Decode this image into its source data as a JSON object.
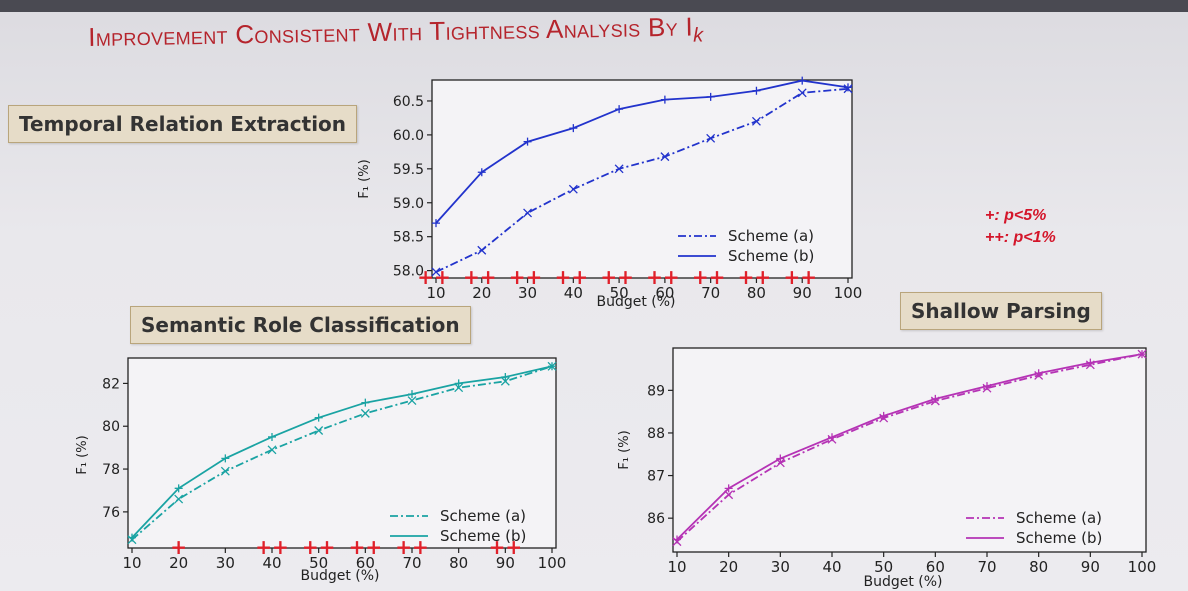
{
  "slide": {
    "title": "Improvement Consistent With Tightness Analysis By I",
    "title_sub": "k",
    "sig_note_1": "+: p<5%",
    "sig_note_2": "++: p<1%"
  },
  "colors": {
    "title": "#b5242c",
    "blue": "#2233cc",
    "teal": "#1aa3a3",
    "magenta": "#b533b5",
    "sig": "#e0202a"
  },
  "chart_data": [
    {
      "type": "line",
      "panel_label": "Temporal Relation Extraction",
      "xlabel": "Budget (%)",
      "ylabel": "F₁ (%)",
      "x": [
        10,
        20,
        30,
        40,
        50,
        60,
        70,
        80,
        90,
        100
      ],
      "xlim": [
        10,
        100
      ],
      "ylim": [
        57.95,
        60.75
      ],
      "yticks": [
        58.0,
        58.5,
        59.0,
        59.5,
        60.0,
        60.5
      ],
      "ytick_labels": [
        "58.0",
        "58.5",
        "59.0",
        "59.5",
        "60.0",
        "60.5"
      ],
      "xtick_labels": [
        "10",
        "20",
        "30",
        "40",
        "50",
        "60",
        "70",
        "80",
        "90",
        "100"
      ],
      "legend_position": "lower-right",
      "series": [
        {
          "name": "Scheme (a)",
          "style": "dashdot",
          "marker": "x",
          "color": "#2233cc",
          "values": [
            57.98,
            58.3,
            58.85,
            59.2,
            59.5,
            59.68,
            59.95,
            60.2,
            60.62,
            60.68
          ]
        },
        {
          "name": "Scheme (b)",
          "style": "solid",
          "marker": "+",
          "color": "#2233cc",
          "values": [
            58.7,
            59.45,
            59.9,
            60.1,
            60.38,
            60.52,
            60.56,
            60.65,
            60.8,
            60.7
          ]
        }
      ],
      "significance": [
        "++",
        "++",
        "++",
        "++",
        "++",
        "++",
        "++",
        "++",
        "++",
        ""
      ]
    },
    {
      "type": "line",
      "panel_label": "Semantic Role Classification",
      "xlabel": "Budget (%)",
      "ylabel": "F₁ (%)",
      "x": [
        10,
        20,
        30,
        40,
        50,
        60,
        70,
        80,
        90,
        100
      ],
      "xlim": [
        10,
        100
      ],
      "ylim": [
        74.5,
        83.0
      ],
      "yticks": [
        76,
        78,
        80,
        82
      ],
      "ytick_labels": [
        "76",
        "78",
        "80",
        "82"
      ],
      "xtick_labels": [
        "10",
        "20",
        "30",
        "40",
        "50",
        "60",
        "70",
        "80",
        "90",
        "100"
      ],
      "legend_position": "lower-right",
      "series": [
        {
          "name": "Scheme (a)",
          "style": "dashdot",
          "marker": "x",
          "color": "#1aa3a3",
          "values": [
            74.7,
            76.6,
            77.9,
            78.9,
            79.8,
            80.6,
            81.2,
            81.8,
            82.1,
            82.8
          ]
        },
        {
          "name": "Scheme (b)",
          "style": "solid",
          "marker": "+",
          "color": "#1aa3a3",
          "values": [
            74.8,
            77.1,
            78.5,
            79.5,
            80.4,
            81.1,
            81.5,
            82.0,
            82.3,
            82.8
          ]
        }
      ],
      "significance": [
        "",
        "+",
        "",
        "++",
        "++",
        "++",
        "++",
        "",
        "++",
        ""
      ]
    },
    {
      "type": "line",
      "panel_label": "Shallow Parsing",
      "xlabel": "Budget (%)",
      "ylabel": "F₁ (%)",
      "x": [
        10,
        20,
        30,
        40,
        50,
        60,
        70,
        80,
        90,
        100
      ],
      "xlim": [
        10,
        100
      ],
      "ylim": [
        85.3,
        89.9
      ],
      "yticks": [
        86,
        87,
        88,
        89
      ],
      "ytick_labels": [
        "86",
        "87",
        "88",
        "89"
      ],
      "xtick_labels": [
        "10",
        "20",
        "30",
        "40",
        "50",
        "60",
        "70",
        "80",
        "90",
        "100"
      ],
      "legend_position": "lower-right",
      "series": [
        {
          "name": "Scheme (a)",
          "style": "dashdot",
          "marker": "x",
          "color": "#b533b5",
          "values": [
            85.45,
            86.55,
            87.3,
            87.85,
            88.35,
            88.75,
            89.05,
            89.35,
            89.6,
            89.85
          ]
        },
        {
          "name": "Scheme (b)",
          "style": "solid",
          "marker": "+",
          "color": "#b533b5",
          "values": [
            85.5,
            86.7,
            87.4,
            87.9,
            88.4,
            88.8,
            89.1,
            89.4,
            89.65,
            89.85
          ]
        }
      ],
      "significance": [
        "",
        "",
        "",
        "",
        "",
        "",
        "",
        "",
        "",
        ""
      ]
    }
  ]
}
